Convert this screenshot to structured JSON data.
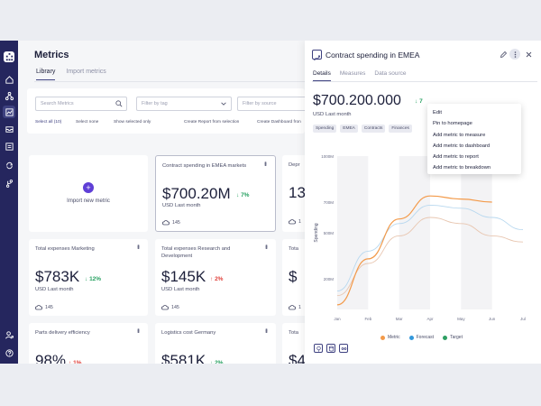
{
  "colors": {
    "rail": "#25265e",
    "accent": "#3e4180",
    "plus": "#5f3fd6",
    "positive": "#27a161",
    "negative": "#e0413b",
    "metric_series": "#f39a4a",
    "forecast_series": "#3498db",
    "target_series": "#2e9f63"
  },
  "sidebar": {
    "icons": [
      "logo-icon",
      "home-icon",
      "hierarchy-icon",
      "metrics-icon",
      "inbox-icon",
      "reports-icon",
      "sync-icon",
      "branch-icon",
      "user-settings-icon",
      "help-icon"
    ]
  },
  "main": {
    "title": "Metrics",
    "tabs": [
      {
        "label": "Library"
      },
      {
        "label": "Import metrics"
      }
    ],
    "filters": {
      "search_placeholder": "Search Metrics",
      "tag_placeholder": "Filter by tag",
      "source_placeholder": "Filter by source",
      "select_all": "Select all (10)",
      "select_none": "Select none",
      "show_selected": "Show selected only",
      "create_report": "Create Report from selection",
      "create_dashboard": "Create Dashboard fron"
    },
    "import_card": {
      "label": "Import new metric",
      "plus": "+"
    },
    "cards": [
      {
        "title": "Contract spending in EMEA markets",
        "value": "$700.20M",
        "delta": "7%",
        "sub": "USD Last month",
        "count": "145"
      },
      {
        "title": "Depr",
        "value": "13",
        "count": "1"
      },
      {
        "title": "Total expenses Marketing",
        "value": "$783K",
        "delta": "12%",
        "sub": "USD Last month",
        "count": "145"
      },
      {
        "title": "Total expenses Research and Development",
        "value": "$145K",
        "delta": "2%",
        "sub": "USD Last month",
        "count": "145"
      },
      {
        "title": "Tota",
        "value": "$",
        "count": "1"
      },
      {
        "title": "Parts delivery efficiency",
        "value": "98%",
        "delta": "1%"
      },
      {
        "title": "Logistics cost Germany",
        "value": "$581K",
        "delta": "2%"
      },
      {
        "title": "Tota",
        "value": "$4"
      }
    ]
  },
  "panel": {
    "title": "Contract spending in EMEA",
    "tabs": [
      {
        "label": "Details"
      },
      {
        "label": "Measures"
      },
      {
        "label": "Data source"
      }
    ],
    "value": "$700.200.000",
    "delta": "7",
    "sub": "USD Last month",
    "tags": [
      "Spending",
      "EMEA",
      "Contracts",
      "Finances"
    ],
    "menu_items": [
      "Edit",
      "Pin to homepage",
      "Add metric to measure",
      "Add metric to dashboard",
      "Add metric to report",
      "Add metric to breakdown"
    ],
    "legend": [
      {
        "label": "Metric",
        "color": "#f39a4a"
      },
      {
        "label": "Forecast",
        "color": "#3498db"
      },
      {
        "label": "Target",
        "color": "#2e9f63"
      }
    ]
  },
  "chart_data": {
    "type": "line",
    "ylabel": "Spending",
    "x": [
      "Jan",
      "Feb",
      "Mar",
      "Apr",
      "May",
      "Jun",
      "Jul"
    ],
    "yticks": [
      "200M",
      "500M",
      "700M",
      "1000M"
    ],
    "ytick_values": [
      200,
      500,
      700,
      1000
    ],
    "ylim": [
      0,
      1000
    ],
    "series": [
      {
        "name": "Metric",
        "values": [
          30,
          330,
          590,
          740,
          720,
          700,
          null
        ]
      },
      {
        "name": "Forecast",
        "values": [
          120,
          380,
          560,
          680,
          660,
          600,
          520
        ]
      },
      {
        "name": "Target",
        "values": [
          90,
          300,
          480,
          600,
          560,
          480,
          440
        ]
      }
    ]
  }
}
